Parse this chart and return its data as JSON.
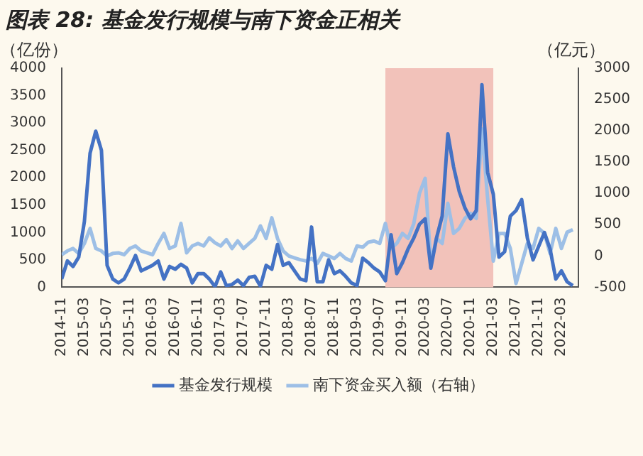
{
  "chart_data": {
    "type": "line",
    "title": "图表 28: 基金发行规模与南下资金正相关",
    "ylabel": "（亿份）",
    "y2label": "（亿元）",
    "x": [
      "2014-11",
      "2014-12",
      "2015-01",
      "2015-02",
      "2015-03",
      "2015-04",
      "2015-05",
      "2015-06",
      "2015-07",
      "2015-08",
      "2015-09",
      "2015-10",
      "2015-11",
      "2015-12",
      "2016-01",
      "2016-02",
      "2016-03",
      "2016-04",
      "2016-05",
      "2016-06",
      "2016-07",
      "2016-08",
      "2016-09",
      "2016-10",
      "2016-11",
      "2016-12",
      "2017-01",
      "2017-02",
      "2017-03",
      "2017-04",
      "2017-05",
      "2017-06",
      "2017-07",
      "2017-08",
      "2017-09",
      "2017-10",
      "2017-11",
      "2017-12",
      "2018-01",
      "2018-02",
      "2018-03",
      "2018-04",
      "2018-05",
      "2018-06",
      "2018-07",
      "2018-08",
      "2018-09",
      "2018-10",
      "2018-11",
      "2018-12",
      "2019-01",
      "2019-02",
      "2019-03",
      "2019-04",
      "2019-05",
      "2019-06",
      "2019-07",
      "2019-08",
      "2019-09",
      "2019-10",
      "2019-11",
      "2019-12",
      "2020-01",
      "2020-02",
      "2020-03",
      "2020-04",
      "2020-05",
      "2020-06",
      "2020-07",
      "2020-08",
      "2020-09",
      "2020-10",
      "2020-11",
      "2020-12",
      "2021-01",
      "2021-02",
      "2021-03",
      "2021-04",
      "2021-05",
      "2021-06",
      "2021-07",
      "2021-08",
      "2021-09",
      "2021-10",
      "2021-11",
      "2021-12",
      "2022-01",
      "2022-02",
      "2022-03",
      "2022-04",
      "2022-05"
    ],
    "series": [
      {
        "name": "基金发行规模",
        "color": "#4472c4",
        "values": [
          150,
          480,
          380,
          550,
          1200,
          2450,
          2850,
          2500,
          400,
          150,
          80,
          150,
          350,
          580,
          300,
          350,
          400,
          480,
          150,
          380,
          330,
          420,
          350,
          80,
          250,
          250,
          150,
          10,
          280,
          30,
          50,
          130,
          30,
          180,
          200,
          20,
          400,
          330,
          780,
          400,
          450,
          300,
          150,
          120,
          1100,
          100,
          100,
          500,
          250,
          300,
          200,
          80,
          30,
          530,
          450,
          350,
          280,
          120,
          960,
          250,
          450,
          700,
          900,
          1150,
          1250,
          350,
          900,
          1300,
          2800,
          2200,
          1750,
          1450,
          1250,
          1400,
          3700,
          2100,
          1700,
          550,
          650,
          1300,
          1400,
          1600,
          900,
          500,
          750,
          1000,
          700,
          150,
          300,
          100,
          30
        ]
      },
      {
        "name": "南下资金买入额（右轴）",
        "color": "#9dbfe6",
        "axis": "y2",
        "values": [
          20,
          80,
          120,
          40,
          200,
          440,
          120,
          80,
          0,
          40,
          50,
          20,
          120,
          160,
          80,
          50,
          20,
          200,
          360,
          120,
          160,
          520,
          50,
          160,
          200,
          160,
          290,
          210,
          160,
          260,
          120,
          240,
          120,
          200,
          280,
          480,
          280,
          610,
          280,
          80,
          0,
          -30,
          -60,
          -80,
          -40,
          -120,
          40,
          0,
          -40,
          40,
          -40,
          -80,
          160,
          140,
          220,
          240,
          200,
          520,
          120,
          200,
          360,
          280,
          520,
          1000,
          1240,
          -120,
          280,
          200,
          840,
          360,
          440,
          600,
          680,
          600,
          2030,
          920,
          -80,
          360,
          360,
          120,
          -440,
          -120,
          200,
          120,
          440,
          360,
          40,
          440,
          120,
          380,
          420
        ]
      }
    ],
    "xlim": [
      "2014-11",
      "2022-06"
    ],
    "xticks": [
      "2014-11",
      "2015-03",
      "2015-07",
      "2015-11",
      "2016-03",
      "2016-07",
      "2016-11",
      "2017-03",
      "2017-07",
      "2017-11",
      "2018-03",
      "2018-07",
      "2018-11",
      "2019-03",
      "2019-07",
      "2019-11",
      "2020-03",
      "2020-07",
      "2020-11",
      "2021-03",
      "2021-07",
      "2021-11",
      "2022-03"
    ],
    "ylim": [
      0,
      4000
    ],
    "yticks": [
      0,
      500,
      1000,
      1500,
      2000,
      2500,
      3000,
      3500,
      4000
    ],
    "y2lim": [
      -500,
      3000
    ],
    "y2ticks": [
      -500,
      0,
      500,
      1000,
      1500,
      2000,
      2500,
      3000
    ],
    "bands": [
      {
        "axis": "x",
        "from": "2019-08",
        "to": "2021-03",
        "color": "#f2c2ba"
      }
    ],
    "grid": false,
    "legend": "bottom",
    "marker": "none",
    "line_style": "solid"
  }
}
